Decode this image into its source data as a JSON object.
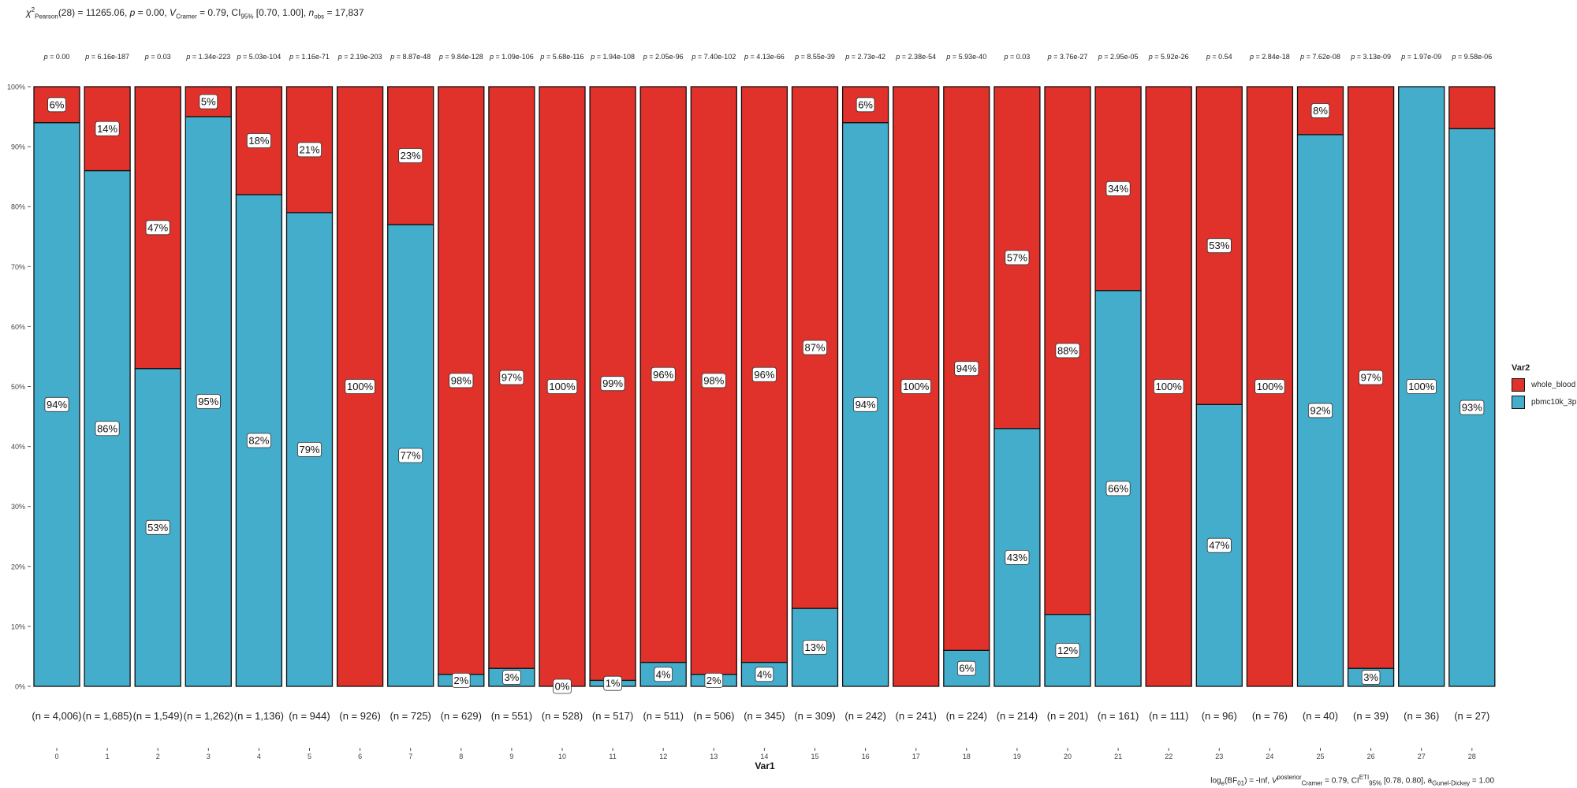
{
  "stats": {
    "title_chi": "χ",
    "title_chi_sup": "2",
    "title_chi_sub": "Pearson",
    "title_df": "(28) = 11265.06, ",
    "title_p": "p",
    "title_p_val": " = 0.00, ",
    "title_v": "V",
    "title_v_sub": "Cramer",
    "title_v_val": " = 0.79, CI",
    "title_ci_sub": "95%",
    "title_ci_val": " [0.70, 1.00], ",
    "title_n": "n",
    "title_n_sub": "obs",
    "title_n_val": " = 17,837",
    "caption_log": "log",
    "caption_log_sub": "e",
    "caption_bf": "(BF",
    "caption_bf_sub": "01",
    "caption_bf_val": ") = -Inf, ",
    "caption_v": "V",
    "caption_v_sup": "posterior",
    "caption_v_sub": "Cramer",
    "caption_v_val": " = 0.79, CI",
    "caption_ci_sup": "ETI",
    "caption_ci_sub": "95%",
    "caption_ci_val": " [0.78, 0.80], a",
    "caption_a_sub": "Gunel-Dickey",
    "caption_a_val": " = 1.00"
  },
  "legend": {
    "title": "Var2",
    "items": [
      {
        "label": "whole_blood",
        "color": "#E0312A"
      },
      {
        "label": "pbmc10k_3p",
        "color": "#43ADCB"
      }
    ]
  },
  "chart_data": {
    "type": "bar",
    "stacked": true,
    "percent": true,
    "xlabel": "Var1",
    "ylabel": "",
    "ylim": [
      0,
      1
    ],
    "yticks": [
      "0%",
      "10%",
      "20%",
      "30%",
      "40%",
      "50%",
      "60%",
      "70%",
      "80%",
      "90%",
      "100%"
    ],
    "categories": [
      "0",
      "1",
      "2",
      "3",
      "4",
      "5",
      "6",
      "7",
      "8",
      "9",
      "10",
      "11",
      "12",
      "13",
      "14",
      "15",
      "16",
      "17",
      "18",
      "19",
      "20",
      "21",
      "22",
      "23",
      "24",
      "25",
      "26",
      "27",
      "28"
    ],
    "series": [
      {
        "name": "whole_blood",
        "color": "#E0312A",
        "values": [
          0.06,
          0.14,
          0.47,
          0.05,
          0.18,
          0.21,
          1.0,
          0.23,
          0.98,
          0.97,
          1.0,
          0.99,
          0.96,
          0.98,
          0.96,
          0.87,
          0.06,
          1.0,
          0.94,
          0.57,
          0.88,
          0.34,
          1.0,
          0.53,
          1.0,
          0.08,
          0.97,
          0.0,
          0.07
        ],
        "labels": [
          "6%",
          "14%",
          "47%",
          "5%",
          "18%",
          "21%",
          "100%",
          "23%",
          "98%",
          "97%",
          "100%",
          "99%",
          "96%",
          "98%",
          "96%",
          "87%",
          "6%",
          "100%",
          "94%",
          "57%",
          "88%",
          "34%",
          "100%",
          "53%",
          "100%",
          "8%",
          "97%",
          "",
          ""
        ]
      },
      {
        "name": "pbmc10k_3p",
        "color": "#43ADCB",
        "values": [
          0.94,
          0.86,
          0.53,
          0.95,
          0.82,
          0.79,
          0.0,
          0.77,
          0.02,
          0.03,
          0.0,
          0.01,
          0.04,
          0.02,
          0.04,
          0.13,
          0.94,
          0.0,
          0.06,
          0.43,
          0.12,
          0.66,
          0.0,
          0.47,
          0.0,
          0.92,
          0.03,
          1.0,
          0.93
        ],
        "labels": [
          "94%",
          "86%",
          "53%",
          "95%",
          "82%",
          "79%",
          "",
          "77%",
          "2%",
          "3%",
          "0%",
          "1%",
          "4%",
          "2%",
          "4%",
          "13%",
          "94%",
          "",
          "6%",
          "43%",
          "12%",
          "66%",
          "",
          "47%",
          "",
          "92%",
          "3%",
          "100%",
          "93%"
        ]
      }
    ],
    "pvalues": [
      "0.00",
      "6.16e-187",
      "0.03",
      "1.34e-223",
      "5.03e-104",
      "1.16e-71",
      "2.19e-203",
      "8.87e-48",
      "9.84e-128",
      "1.09e-106",
      "5.68e-116",
      "1.94e-108",
      "2.05e-96",
      "7.40e-102",
      "4.13e-66",
      "8.55e-39",
      "2.73e-42",
      "2.38e-54",
      "5.93e-40",
      "0.03",
      "3.76e-27",
      "2.95e-05",
      "5.92e-26",
      "0.54",
      "2.84e-18",
      "7.62e-08",
      "3.13e-09",
      "1.97e-09",
      "9.58e-06"
    ],
    "counts": [
      "(n = 4,006)",
      "(n = 1,685)",
      "(n = 1,549)",
      "(n = 1,262)",
      "(n = 1,136)",
      "(n = 944)",
      "(n = 926)",
      "(n = 725)",
      "(n = 629)",
      "(n = 551)",
      "(n = 528)",
      "(n = 517)",
      "(n = 511)",
      "(n = 506)",
      "(n = 345)",
      "(n = 309)",
      "(n = 242)",
      "(n = 241)",
      "(n = 224)",
      "(n = 214)",
      "(n = 201)",
      "(n = 161)",
      "(n = 111)",
      "(n = 96)",
      "(n = 76)",
      "(n = 40)",
      "(n = 39)",
      "(n = 36)",
      "(n = 27)"
    ],
    "legend_position": "right",
    "grid": false
  }
}
